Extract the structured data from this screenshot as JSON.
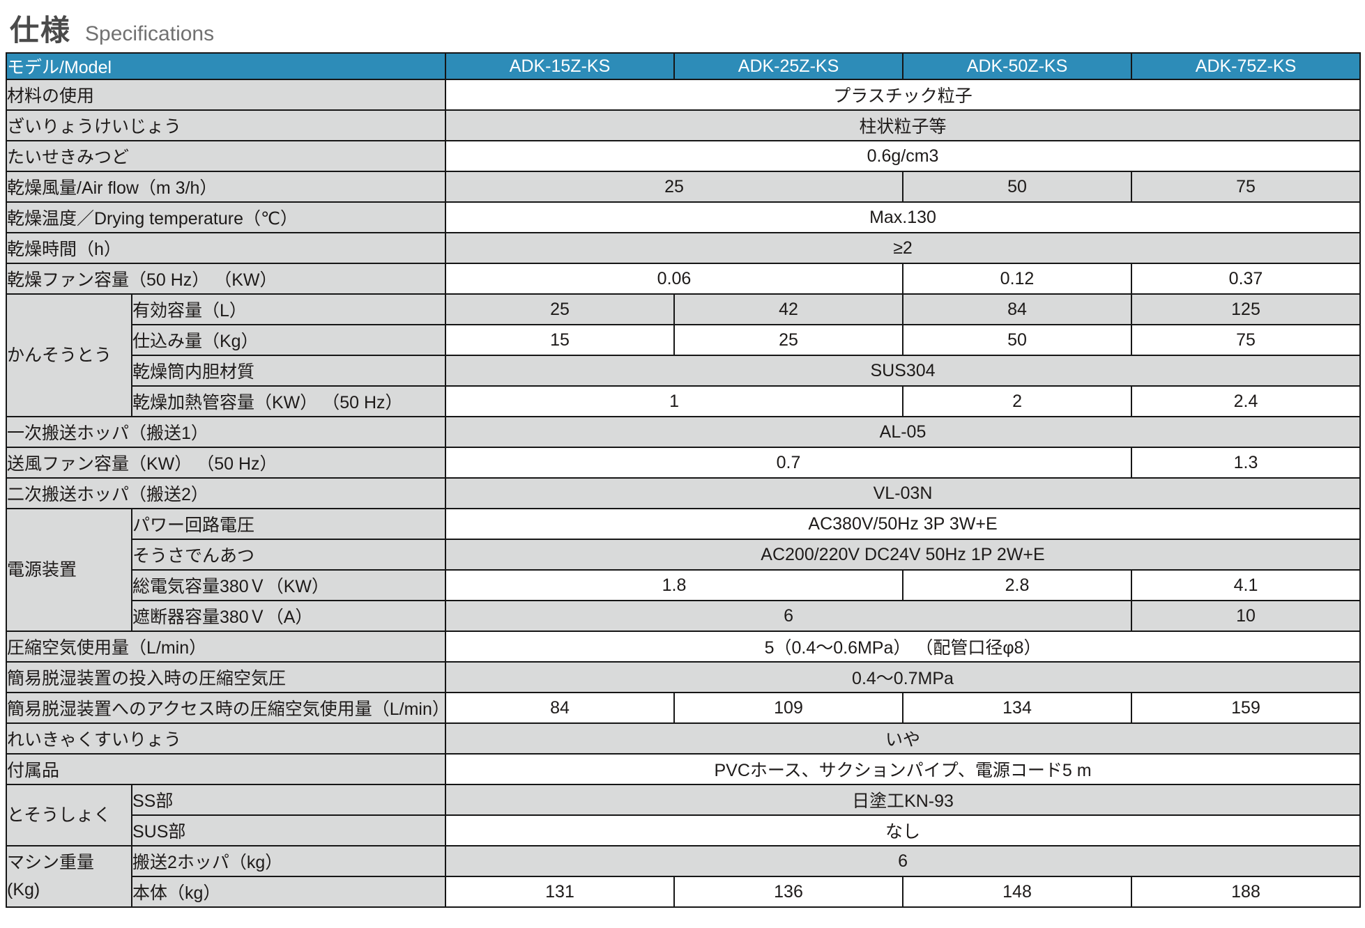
{
  "page_title": {
    "jp": "仕様",
    "en": "Specifications"
  },
  "colors": {
    "header_bg": "#2d8cb8",
    "header_text": "#ffffff",
    "row_gray": "#d9dada",
    "row_white": "#ffffff",
    "border": "#161616",
    "title_jp": "#4a4a4a",
    "title_en": "#717171"
  },
  "table": {
    "header": {
      "model_label": "モデル/Model",
      "models": [
        "ADK-15Z-KS",
        "ADK-25Z-KS",
        "ADK-50Z-KS",
        "ADK-75Z-KS"
      ]
    },
    "rows": [
      {
        "label": "材料の使用",
        "shade": "white",
        "cells": [
          {
            "t": "プラスチック粒子",
            "s": 4
          }
        ]
      },
      {
        "label": "ざいりょうけいじょう",
        "shade": "gray",
        "cells": [
          {
            "t": "柱状粒子等",
            "s": 4
          }
        ]
      },
      {
        "label": "たいせきみつど",
        "shade": "white",
        "cells": [
          {
            "t": "0.6g/cm3",
            "s": 4
          }
        ]
      },
      {
        "label": "乾燥風量/Air flow（m 3/h）",
        "shade": "gray",
        "cells": [
          {
            "t": "25",
            "s": 2
          },
          {
            "t": "50",
            "s": 1
          },
          {
            "t": "75",
            "s": 1
          }
        ]
      },
      {
        "label": "乾燥温度／Drying temperature（℃）",
        "shade": "white",
        "cells": [
          {
            "t": "Max.130",
            "s": 4
          }
        ]
      },
      {
        "label": "乾燥時間（h）",
        "shade": "gray",
        "cells": [
          {
            "t": "≥2",
            "s": 4
          }
        ]
      },
      {
        "label": "乾燥ファン容量（50 Hz） （KW）",
        "shade": "white",
        "cells": [
          {
            "t": "0.06",
            "s": 2
          },
          {
            "t": "0.12",
            "s": 1
          },
          {
            "t": "0.37",
            "s": 1
          }
        ]
      },
      {
        "group": "かんそうとう",
        "groupspan": 4,
        "sublabel": "有効容量（L）",
        "shade": "gray",
        "cells": [
          {
            "t": "25",
            "s": 1
          },
          {
            "t": "42",
            "s": 1
          },
          {
            "t": "84",
            "s": 1
          },
          {
            "t": "125",
            "s": 1
          }
        ]
      },
      {
        "sublabel": "仕込み量（Kg）",
        "shade": "white",
        "cells": [
          {
            "t": "15",
            "s": 1
          },
          {
            "t": "25",
            "s": 1
          },
          {
            "t": "50",
            "s": 1
          },
          {
            "t": "75",
            "s": 1
          }
        ]
      },
      {
        "sublabel": "乾燥筒内胆材質",
        "shade": "gray",
        "cells": [
          {
            "t": "SUS304",
            "s": 4
          }
        ]
      },
      {
        "sublabel": "乾燥加熱管容量（KW） （50 Hz）",
        "shade": "white",
        "cells": [
          {
            "t": "1",
            "s": 2
          },
          {
            "t": "2",
            "s": 1
          },
          {
            "t": "2.4",
            "s": 1
          }
        ]
      },
      {
        "label": "一次搬送ホッパ（搬送1）",
        "shade": "gray",
        "cells": [
          {
            "t": "AL-05",
            "s": 4
          }
        ]
      },
      {
        "label": "送風ファン容量（KW） （50 Hz）",
        "shade": "white",
        "cells": [
          {
            "t": "0.7",
            "s": 3
          },
          {
            "t": "1.3",
            "s": 1
          }
        ]
      },
      {
        "label": "二次搬送ホッパ（搬送2）",
        "shade": "gray",
        "cells": [
          {
            "t": "VL-03N",
            "s": 4
          }
        ]
      },
      {
        "group": "電源装置",
        "groupspan": 4,
        "sublabel": "パワー回路電圧",
        "shade": "white",
        "cells": [
          {
            "t": "AC380V/50Hz 3P 3W+E",
            "s": 4
          }
        ]
      },
      {
        "sublabel": "そうさでんあつ",
        "shade": "gray",
        "cells": [
          {
            "t": "AC200/220V DC24V 50Hz 1P 2W+E",
            "s": 4
          }
        ]
      },
      {
        "sublabel": "総電気容量380Ｖ（KW）",
        "shade": "white",
        "cells": [
          {
            "t": "1.8",
            "s": 2
          },
          {
            "t": "2.8",
            "s": 1
          },
          {
            "t": "4.1",
            "s": 1
          }
        ]
      },
      {
        "sublabel": "遮断器容量380Ｖ（A）",
        "shade": "gray",
        "cells": [
          {
            "t": "6",
            "s": 3
          },
          {
            "t": "10",
            "s": 1
          }
        ]
      },
      {
        "label": "圧縮空気使用量（L/min）",
        "shade": "white",
        "cells": [
          {
            "t": "5（0.4～0.6MPa） （配管口径φ8）",
            "s": 4
          }
        ]
      },
      {
        "label": "簡易脱湿装置の投入時の圧縮空気圧",
        "shade": "gray",
        "cells": [
          {
            "t": "0.4～0.7MPa",
            "s": 4
          }
        ]
      },
      {
        "label": "簡易脱湿装置へのアクセス時の圧縮空気使用量（L/min）",
        "shade": "white",
        "cells": [
          {
            "t": "84",
            "s": 1
          },
          {
            "t": "109",
            "s": 1
          },
          {
            "t": "134",
            "s": 1
          },
          {
            "t": "159",
            "s": 1
          }
        ]
      },
      {
        "label": "れいきゃくすいりょう",
        "shade": "gray",
        "cells": [
          {
            "t": "いや",
            "s": 4
          }
        ]
      },
      {
        "label": "付属品",
        "shade": "white",
        "cells": [
          {
            "t": "PVCホース、サクションパイプ、電源コード5 m",
            "s": 4
          }
        ]
      },
      {
        "group": "とそうしょく",
        "groupspan": 2,
        "sublabel": "SS部",
        "shade": "gray",
        "cells": [
          {
            "t": "日塗工KN-93",
            "s": 4
          }
        ]
      },
      {
        "sublabel": "SUS部",
        "shade": "white",
        "cells": [
          {
            "t": "なし",
            "s": 4
          }
        ]
      },
      {
        "group": "マシン重量\n(Kg)",
        "groupspan": 2,
        "sublabel": "搬送2ホッパ（kg）",
        "shade": "gray",
        "cells": [
          {
            "t": "6",
            "s": 4
          }
        ]
      },
      {
        "sublabel": "本体（kg）",
        "shade": "white",
        "cells": [
          {
            "t": "131",
            "s": 1
          },
          {
            "t": "136",
            "s": 1
          },
          {
            "t": "148",
            "s": 1
          },
          {
            "t": "188",
            "s": 1
          }
        ]
      }
    ]
  }
}
